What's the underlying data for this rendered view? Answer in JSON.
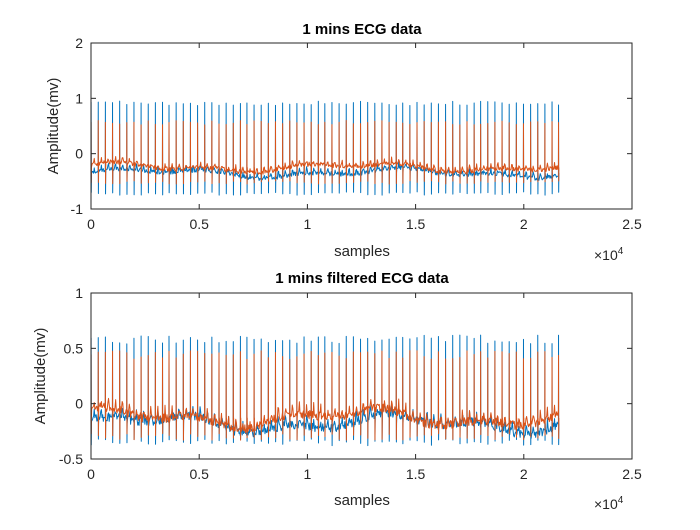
{
  "chart_data": [
    {
      "type": "line",
      "title": "1 mins ECG data",
      "xlabel": "samples",
      "ylabel": "Amplitude(mv)",
      "xlim": [
        0,
        25000
      ],
      "ylim": [
        -1,
        2
      ],
      "xticks": [
        0,
        5000,
        10000,
        15000,
        20000,
        25000
      ],
      "xtick_labels": [
        "0",
        "0.5",
        "1",
        "1.5",
        "2",
        "2.5"
      ],
      "yticks": [
        -1,
        0,
        1,
        2
      ],
      "ytick_labels": [
        "-1",
        "0",
        "1",
        "2"
      ],
      "x_exponent_base": "×10",
      "x_exponent_power": "4",
      "grid": false,
      "box": true,
      "n_samples": 21600,
      "beats": 66,
      "series": [
        {
          "color": "#0072BD",
          "baseline": -0.35,
          "r_peak": 0.95,
          "s_wave": -0.75
        },
        {
          "color": "#D95319",
          "baseline": -0.25,
          "r_peak": 0.6,
          "s_wave": -0.55
        }
      ]
    },
    {
      "type": "line",
      "title": "1 mins filtered ECG data",
      "xlabel": "samples",
      "ylabel": "Amplitude(mv)",
      "xlim": [
        0,
        25000
      ],
      "ylim": [
        -0.5,
        1
      ],
      "xticks": [
        0,
        5000,
        10000,
        15000,
        20000,
        25000
      ],
      "xtick_labels": [
        "0",
        "0.5",
        "1",
        "1.5",
        "2",
        "2.5"
      ],
      "yticks": [
        -0.5,
        0,
        0.5,
        1
      ],
      "ytick_labels": [
        "-0.5",
        "0",
        "0.5",
        "1"
      ],
      "x_exponent_base": "×10",
      "x_exponent_power": "4",
      "grid": false,
      "box": true,
      "n_samples": 21600,
      "beats": 66,
      "series": [
        {
          "color": "#0072BD",
          "baseline": -0.18,
          "r_peak": 0.62,
          "s_wave": -0.38
        },
        {
          "color": "#D95319",
          "baseline": -0.13,
          "r_peak": 0.48,
          "s_wave": -0.33
        }
      ]
    }
  ]
}
